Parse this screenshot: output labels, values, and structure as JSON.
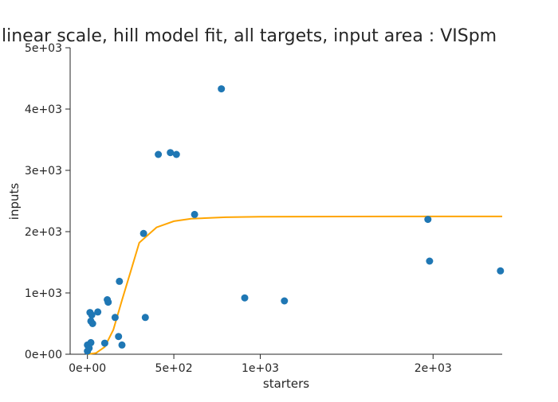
{
  "chart_data": {
    "type": "scatter",
    "title": "linear scale, hill model fit, all targets, input area : VISpm",
    "xlabel": "starters",
    "ylabel": "inputs",
    "xlim": [
      -100,
      2400
    ],
    "ylim": [
      0,
      5000
    ],
    "x_ticks": [
      {
        "value": 0,
        "label": "0e+00"
      },
      {
        "value": 500,
        "label": "5e+02"
      },
      {
        "value": 1000,
        "label": "1e+03"
      },
      {
        "value": 2000,
        "label": "2e+03"
      }
    ],
    "y_ticks": [
      {
        "value": 0,
        "label": "0e+00"
      },
      {
        "value": 1000,
        "label": "1e+03"
      },
      {
        "value": 2000,
        "label": "2e+03"
      },
      {
        "value": 3000,
        "label": "3e+03"
      },
      {
        "value": 4000,
        "label": "4e+03"
      },
      {
        "value": 5000,
        "label": "5e+03"
      }
    ],
    "grid": false,
    "series": [
      {
        "kind": "scatter",
        "color": "#1f77b4",
        "points": [
          {
            "x": 0,
            "y": 50
          },
          {
            "x": 0,
            "y": 150
          },
          {
            "x": 10,
            "y": 100
          },
          {
            "x": 15,
            "y": 680
          },
          {
            "x": 20,
            "y": 190
          },
          {
            "x": 25,
            "y": 640
          },
          {
            "x": 20,
            "y": 540
          },
          {
            "x": 30,
            "y": 500
          },
          {
            "x": 60,
            "y": 690
          },
          {
            "x": 100,
            "y": 180
          },
          {
            "x": 115,
            "y": 890
          },
          {
            "x": 120,
            "y": 850
          },
          {
            "x": 160,
            "y": 600
          },
          {
            "x": 180,
            "y": 290
          },
          {
            "x": 185,
            "y": 1190
          },
          {
            "x": 200,
            "y": 150
          },
          {
            "x": 325,
            "y": 1970
          },
          {
            "x": 335,
            "y": 600
          },
          {
            "x": 410,
            "y": 3260
          },
          {
            "x": 480,
            "y": 3290
          },
          {
            "x": 515,
            "y": 3260
          },
          {
            "x": 620,
            "y": 2280
          },
          {
            "x": 775,
            "y": 4330
          },
          {
            "x": 910,
            "y": 920
          },
          {
            "x": 1140,
            "y": 870
          },
          {
            "x": 1970,
            "y": 2200
          },
          {
            "x": 1980,
            "y": 1520
          },
          {
            "x": 2390,
            "y": 1360
          }
        ]
      },
      {
        "kind": "line",
        "color": "#ffa500",
        "points": [
          {
            "x": 0,
            "y": 0
          },
          {
            "x": 50,
            "y": 20
          },
          {
            "x": 100,
            "y": 120
          },
          {
            "x": 150,
            "y": 400
          },
          {
            "x": 200,
            "y": 880
          },
          {
            "x": 250,
            "y": 1350
          },
          {
            "x": 300,
            "y": 1820
          },
          {
            "x": 400,
            "y": 2070
          },
          {
            "x": 500,
            "y": 2170
          },
          {
            "x": 600,
            "y": 2210
          },
          {
            "x": 800,
            "y": 2235
          },
          {
            "x": 1000,
            "y": 2243
          },
          {
            "x": 1500,
            "y": 2247
          },
          {
            "x": 2000,
            "y": 2248
          },
          {
            "x": 2400,
            "y": 2248
          }
        ]
      }
    ]
  }
}
